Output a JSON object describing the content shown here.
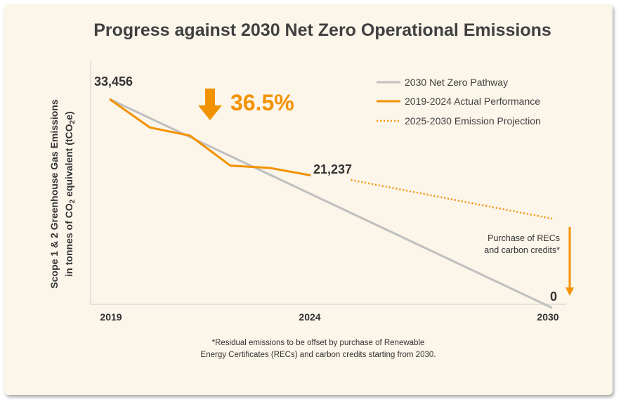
{
  "chart_data": {
    "type": "line",
    "title": "Progress against 2030 Net Zero Operational Emissions",
    "ylabel_line1": "Scope 1 & 2 Greenhouse Gas Emissions",
    "ylabel_line2_prefix": "in tonnes of CO",
    "ylabel_line2_sub": "2",
    "ylabel_line2_mid": " equivalent (tCO",
    "ylabel_line2_sub2": "2",
    "ylabel_line2_suffix": "e)",
    "x_tick_labels": [
      "2019",
      "2024",
      "2030"
    ],
    "xlim": [
      2019,
      2030
    ],
    "ylim": [
      0,
      33456
    ],
    "legend_position": "top-right",
    "series": [
      {
        "name": "2030 Net Zero Pathway",
        "style": "solid",
        "color": "#c0c0c0",
        "x": [
          2019,
          2030
        ],
        "y": [
          33456,
          0
        ]
      },
      {
        "name": "2019-2024 Actual Performance",
        "style": "solid",
        "color": "#f39200",
        "x": [
          2019,
          2020,
          2021,
          2022,
          2023,
          2024
        ],
        "y": [
          33456,
          28900,
          27600,
          22800,
          22400,
          21237
        ]
      },
      {
        "name": "2025-2030 Emission Projection",
        "style": "dotted",
        "color": "#f39200",
        "x": [
          2025,
          2030
        ],
        "y": [
          20500,
          14300
        ]
      }
    ],
    "data_labels": {
      "start": "33,456",
      "end_actual": "21,237",
      "end_target": "0"
    },
    "reduction_label": "36.5%",
    "annotation_line1": "Purchase of RECs",
    "annotation_line2": "and carbon credits*",
    "footnote_line1": "*Residual emissions to be offset by purchase of Renewable",
    "footnote_line2": "Energy Certificates (RECs) and carbon credits starting from 2030."
  },
  "colors": {
    "background": "#fbf5ea",
    "accent": "#f39200",
    "pathway": "#c0c0c0",
    "text": "#333333"
  }
}
